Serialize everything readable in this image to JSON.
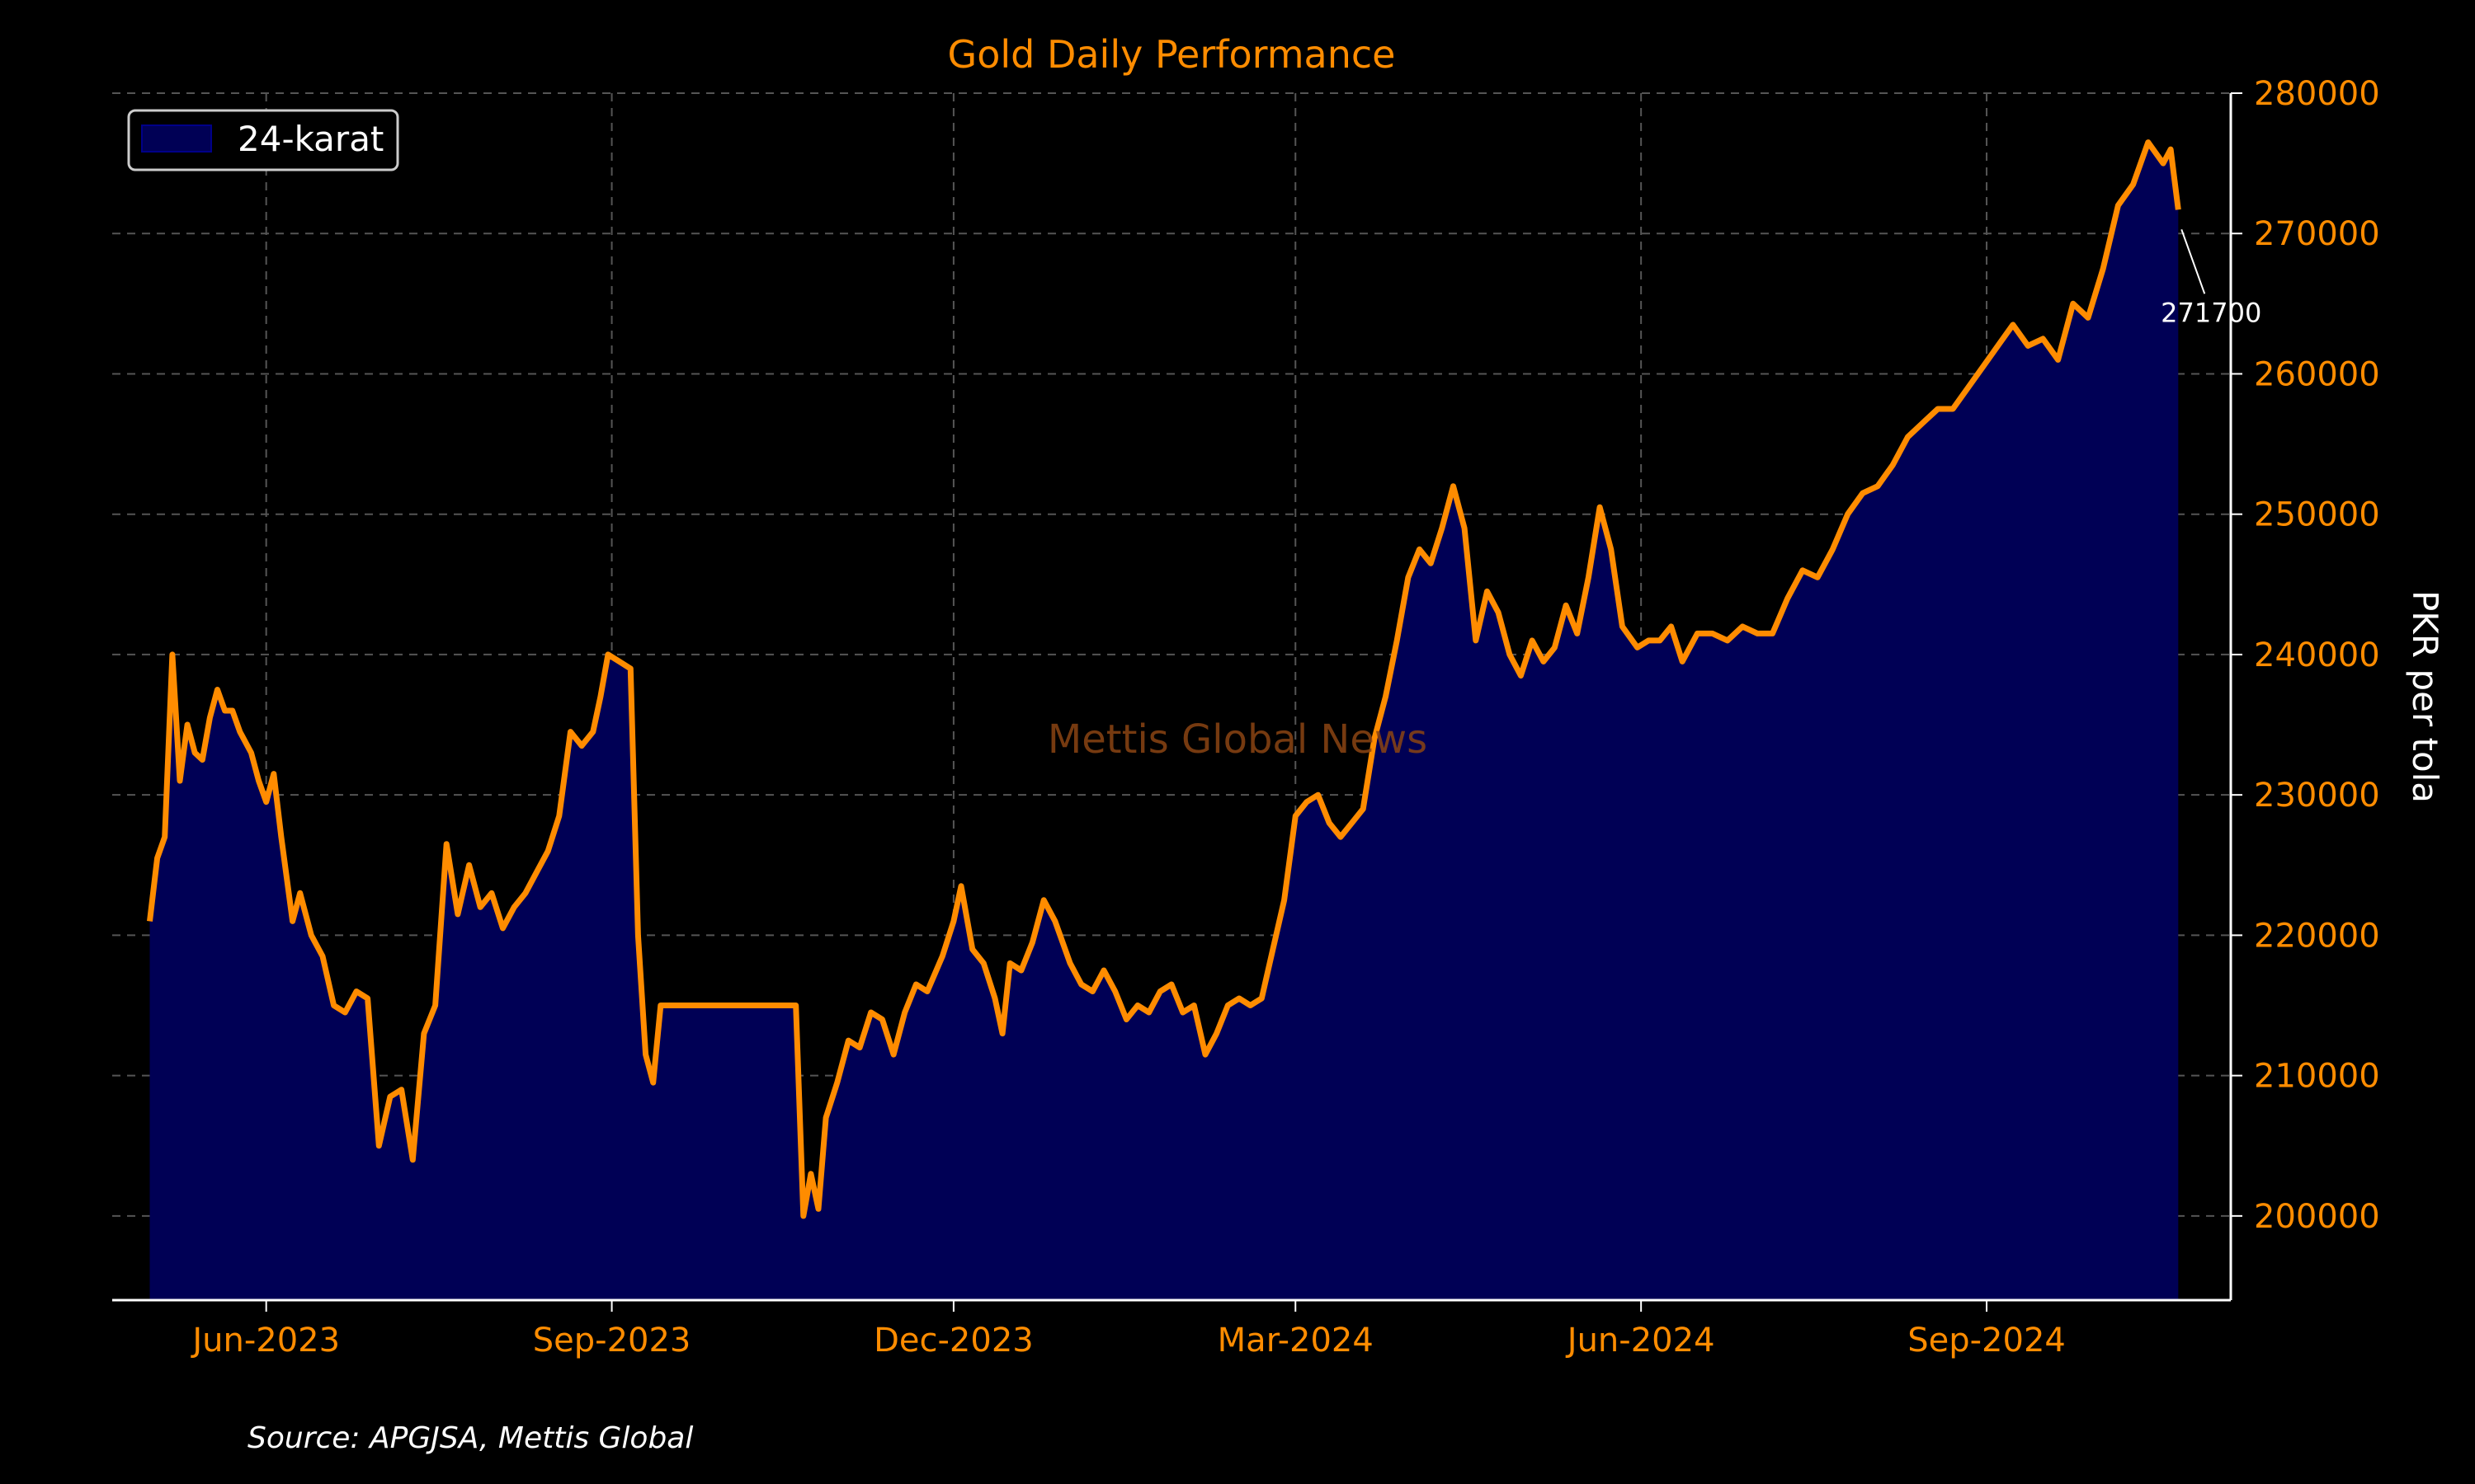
{
  "chart_data": {
    "type": "area",
    "title": "Gold Daily Performance",
    "ylabel": "PKR per tola",
    "xlabel": "",
    "source": "Source: APGJSA, Mettis Global",
    "watermark": "Mettis Global News",
    "legend": {
      "label": "24-karat",
      "placement": "top-left"
    },
    "ylim": [
      194000,
      280000
    ],
    "xlim": [
      "2023-04-21",
      "2024-11-05"
    ],
    "grid": true,
    "y_ticks": [
      200000,
      210000,
      220000,
      230000,
      240000,
      250000,
      260000,
      270000,
      280000
    ],
    "x_ticks": [
      {
        "date": "2023-06-01",
        "label": "Jun-2023"
      },
      {
        "date": "2023-09-01",
        "label": "Sep-2023"
      },
      {
        "date": "2023-12-01",
        "label": "Dec-2023"
      },
      {
        "date": "2024-03-01",
        "label": "Mar-2024"
      },
      {
        "date": "2024-06-01",
        "label": "Jun-2024"
      },
      {
        "date": "2024-09-01",
        "label": "Sep-2024"
      }
    ],
    "annotation": {
      "date": "2024-10-22",
      "value": 271700,
      "text": "271700"
    },
    "colors": {
      "line": "#ff8c00",
      "fill": "#000055",
      "text_accent": "#ff8c00",
      "grid": "#555555",
      "watermark": "#8b4513"
    },
    "series": [
      {
        "name": "24-karat",
        "x": [
          "2023-05-01",
          "2023-05-03",
          "2023-05-05",
          "2023-05-07",
          "2023-05-09",
          "2023-05-10",
          "2023-05-11",
          "2023-05-13",
          "2023-05-15",
          "2023-05-17",
          "2023-05-19",
          "2023-05-21",
          "2023-05-23",
          "2023-05-25",
          "2023-05-28",
          "2023-05-30",
          "2023-06-01",
          "2023-06-03",
          "2023-06-05",
          "2023-06-08",
          "2023-06-10",
          "2023-06-13",
          "2023-06-16",
          "2023-06-19",
          "2023-06-22",
          "2023-06-25",
          "2023-06-28",
          "2023-07-01",
          "2023-07-04",
          "2023-07-07",
          "2023-07-10",
          "2023-07-13",
          "2023-07-16",
          "2023-07-19",
          "2023-07-22",
          "2023-07-25",
          "2023-07-28",
          "2023-07-31",
          "2023-08-03",
          "2023-08-06",
          "2023-08-09",
          "2023-08-12",
          "2023-08-15",
          "2023-08-18",
          "2023-08-21",
          "2023-08-24",
          "2023-08-27",
          "2023-08-29",
          "2023-08-31",
          "2023-09-03",
          "2023-09-06",
          "2023-09-08",
          "2023-09-10",
          "2023-09-12",
          "2023-09-14",
          "2023-09-17",
          "2023-09-19",
          "2023-09-20",
          "2023-10-20",
          "2023-10-22",
          "2023-10-24",
          "2023-10-26",
          "2023-10-28",
          "2023-10-31",
          "2023-11-03",
          "2023-11-06",
          "2023-11-09",
          "2023-11-12",
          "2023-11-15",
          "2023-11-18",
          "2023-11-21",
          "2023-11-24",
          "2023-11-28",
          "2023-12-01",
          "2023-12-03",
          "2023-12-06",
          "2023-12-09",
          "2023-12-12",
          "2023-12-14",
          "2023-12-16",
          "2023-12-19",
          "2023-12-22",
          "2023-12-25",
          "2023-12-28",
          "2024-01-01",
          "2024-01-04",
          "2024-01-07",
          "2024-01-10",
          "2024-01-13",
          "2024-01-16",
          "2024-01-19",
          "2024-01-22",
          "2024-01-25",
          "2024-01-28",
          "2024-01-31",
          "2024-02-03",
          "2024-02-06",
          "2024-02-09",
          "2024-02-12",
          "2024-02-15",
          "2024-02-18",
          "2024-02-21",
          "2024-02-24",
          "2024-02-27",
          "2024-03-01",
          "2024-03-04",
          "2024-03-07",
          "2024-03-10",
          "2024-03-13",
          "2024-03-16",
          "2024-03-19",
          "2024-03-22",
          "2024-03-25",
          "2024-03-28",
          "2024-03-31",
          "2024-04-03",
          "2024-04-06",
          "2024-04-09",
          "2024-04-12",
          "2024-04-15",
          "2024-04-18",
          "2024-04-21",
          "2024-04-24",
          "2024-04-27",
          "2024-04-30",
          "2024-05-03",
          "2024-05-06",
          "2024-05-09",
          "2024-05-12",
          "2024-05-15",
          "2024-05-18",
          "2024-05-21",
          "2024-05-24",
          "2024-05-27",
          "2024-05-31",
          "2024-06-03",
          "2024-06-06",
          "2024-06-09",
          "2024-06-12",
          "2024-06-16",
          "2024-06-20",
          "2024-06-24",
          "2024-06-28",
          "2024-07-02",
          "2024-07-06",
          "2024-07-10",
          "2024-07-14",
          "2024-07-18",
          "2024-07-22",
          "2024-07-26",
          "2024-07-30",
          "2024-08-03",
          "2024-08-07",
          "2024-08-11",
          "2024-08-15",
          "2024-08-19",
          "2024-08-23",
          "2024-08-27",
          "2024-08-31",
          "2024-09-04",
          "2024-09-08",
          "2024-09-12",
          "2024-09-16",
          "2024-09-20",
          "2024-09-24",
          "2024-09-28",
          "2024-10-02",
          "2024-10-06",
          "2024-10-10",
          "2024-10-14",
          "2024-10-18",
          "2024-10-20",
          "2024-10-22"
        ],
        "values": [
          221000,
          225500,
          227000,
          240000,
          231000,
          233000,
          235000,
          233000,
          232500,
          235500,
          237500,
          236000,
          236000,
          234500,
          233000,
          231000,
          229500,
          231500,
          227000,
          221000,
          223000,
          220000,
          218500,
          215000,
          214500,
          216000,
          215500,
          205000,
          208500,
          209000,
          204000,
          213000,
          215000,
          226500,
          221500,
          225000,
          222000,
          223000,
          220500,
          222000,
          223000,
          224500,
          226000,
          228500,
          234500,
          233500,
          234500,
          237000,
          240000,
          239500,
          239000,
          220000,
          211500,
          209500,
          215000,
          215000,
          215000,
          215000,
          215000,
          200000,
          203000,
          200500,
          207000,
          209500,
          212500,
          212000,
          214500,
          214000,
          211500,
          214500,
          216500,
          216000,
          218500,
          221000,
          223500,
          219000,
          218000,
          215500,
          213000,
          218000,
          217500,
          219500,
          222500,
          221000,
          218000,
          216500,
          216000,
          217500,
          216000,
          214000,
          215000,
          214500,
          216000,
          216500,
          214500,
          215000,
          211500,
          213000,
          215000,
          215500,
          215000,
          215500,
          219000,
          222500,
          228500,
          229500,
          230000,
          228000,
          227000,
          228000,
          229000,
          234000,
          237000,
          241000,
          245500,
          247500,
          246500,
          249000,
          252000,
          249000,
          241000,
          244500,
          243000,
          240000,
          238500,
          241000,
          239500,
          240500,
          243500,
          241500,
          245500,
          250500,
          247500,
          242000,
          240500,
          241000,
          241000,
          242000,
          239500,
          241500,
          241500,
          241000,
          242000,
          241500,
          241500,
          244000,
          246000,
          245500,
          247500,
          250000,
          251500,
          252000,
          253500,
          255500,
          256500,
          257500,
          257500,
          259000,
          260500,
          262000,
          263500,
          262000,
          262500,
          261000,
          265000,
          264000,
          267500,
          272000,
          273500,
          276500,
          275000,
          276000,
          271700
        ]
      }
    ]
  }
}
